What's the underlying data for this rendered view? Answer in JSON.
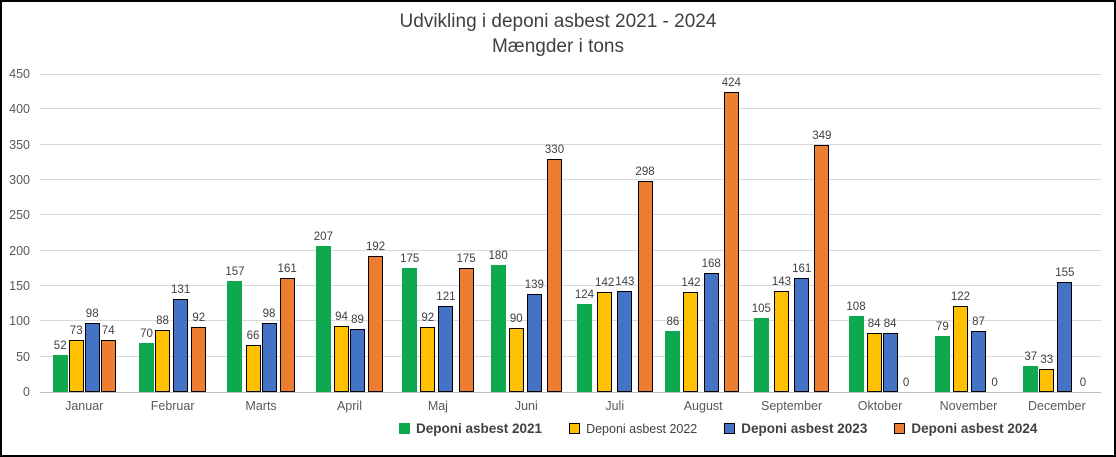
{
  "chart_data": {
    "type": "bar",
    "title": "Udvikling i deponi asbest 2021 - 2024",
    "subtitle": "Mængder i tons",
    "categories": [
      "Januar",
      "Februar",
      "Marts",
      "April",
      "Maj",
      "Juni",
      "Juli",
      "August",
      "September",
      "Oktober",
      "November",
      "December"
    ],
    "series": [
      {
        "name": "Deponi asbest 2021",
        "color": "#0EA84F",
        "outlined": false,
        "legend_bold": true,
        "values": [
          52,
          70,
          157,
          207,
          175,
          180,
          124,
          86,
          105,
          108,
          79,
          37
        ]
      },
      {
        "name": "Deponi asbest 2022",
        "color": "#FFC000",
        "outlined": true,
        "legend_bold": false,
        "values": [
          73,
          88,
          66,
          94,
          92,
          90,
          142,
          142,
          143,
          84,
          122,
          33
        ]
      },
      {
        "name": "Deponi asbest 2023",
        "color": "#4472C4",
        "outlined": true,
        "legend_bold": true,
        "values": [
          98,
          131,
          98,
          89,
          121,
          139,
          143,
          168,
          161,
          84,
          87,
          155
        ]
      },
      {
        "name": "Deponi asbest 2024",
        "color": "#ED7D31",
        "outlined": true,
        "legend_bold": true,
        "values": [
          74,
          92,
          161,
          192,
          175,
          330,
          298,
          424,
          349,
          0,
          0,
          0
        ]
      }
    ],
    "ylim": [
      0,
      450
    ],
    "yticks": [
      0,
      50,
      100,
      150,
      200,
      250,
      300,
      350,
      400,
      450
    ],
    "grid": true,
    "show_value_labels": true,
    "legend_position": "bottom",
    "gridline_color": "#D9D9D9",
    "axis_line_color": "#BFBFBF",
    "value_label_color": "#404040",
    "tick_label_color": "#595959",
    "title_color": "#404040"
  }
}
